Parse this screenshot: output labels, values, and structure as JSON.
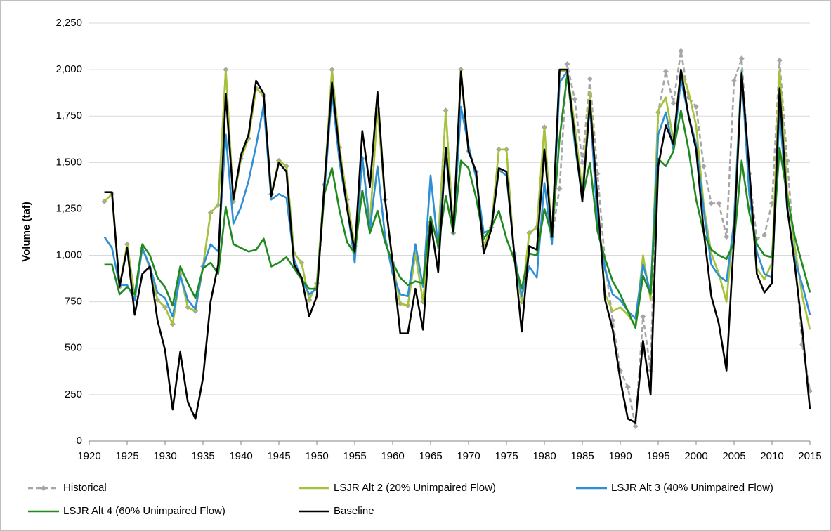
{
  "chart_data": {
    "type": "line",
    "y_label": "Volume (taf)",
    "x": [
      1922,
      1923,
      1924,
      1925,
      1926,
      1927,
      1928,
      1929,
      1930,
      1931,
      1932,
      1933,
      1934,
      1935,
      1936,
      1937,
      1938,
      1939,
      1940,
      1941,
      1942,
      1943,
      1944,
      1945,
      1946,
      1947,
      1948,
      1949,
      1950,
      1951,
      1952,
      1953,
      1954,
      1955,
      1956,
      1957,
      1958,
      1959,
      1960,
      1961,
      1962,
      1963,
      1964,
      1965,
      1966,
      1967,
      1968,
      1969,
      1970,
      1971,
      1972,
      1973,
      1974,
      1975,
      1976,
      1977,
      1978,
      1979,
      1980,
      1981,
      1982,
      1983,
      1984,
      1985,
      1986,
      1987,
      1988,
      1989,
      1990,
      1991,
      1992,
      1993,
      1994,
      1995,
      1996,
      1997,
      1998,
      1999,
      2000,
      2001,
      2002,
      2003,
      2004,
      2005,
      2006,
      2007,
      2008,
      2009,
      2010,
      2011,
      2012,
      2013,
      2014,
      2015
    ],
    "xlim": [
      1920,
      2015
    ],
    "xticks": [
      1920,
      1925,
      1930,
      1935,
      1940,
      1945,
      1950,
      1955,
      1960,
      1965,
      1970,
      1975,
      1980,
      1985,
      1990,
      1995,
      2000,
      2005,
      2010,
      2015
    ],
    "ylim": [
      0,
      2250
    ],
    "yticks": [
      0,
      250,
      500,
      750,
      {
        "value": 1000,
        "label": "1,000"
      },
      {
        "value": 1250,
        "label": "1,250"
      },
      {
        "value": 1500,
        "label": "1,500"
      },
      {
        "value": 1750,
        "label": "1,750"
      },
      {
        "value": 2000,
        "label": "2,000"
      },
      {
        "value": 2250,
        "label": "2,250"
      }
    ],
    "grid": true,
    "series": [
      {
        "name": "Historical",
        "color": "#a6a6a6",
        "dashed": true,
        "marker": "diamond",
        "values": [
          1290,
          1330,
          830,
          1060,
          780,
          1040,
          930,
          760,
          720,
          630,
          900,
          720,
          700,
          940,
          1230,
          1270,
          2000,
          1290,
          1520,
          1630,
          1900,
          1860,
          1330,
          1510,
          1480,
          1010,
          960,
          760,
          850,
          1380,
          2000,
          1580,
          1300,
          1050,
          1520,
          1170,
          1790,
          1300,
          960,
          740,
          730,
          1010,
          750,
          1180,
          1080,
          1780,
          1120,
          2000,
          1560,
          1450,
          1050,
          1150,
          1570,
          1570,
          1010,
          750,
          1120,
          1150,
          1690,
          1100,
          1360,
          2030,
          1840,
          1500,
          1950,
          1440,
          960,
          650,
          380,
          290,
          80,
          670,
          380,
          1770,
          1990,
          1820,
          2100,
          1850,
          1800,
          1480,
          1280,
          1280,
          1100,
          1940,
          2060,
          1440,
          1090,
          1110,
          1280,
          2050,
          1510,
          1000,
          520,
          270
        ]
      },
      {
        "name": "LSJR Alt 2 (20% Unimpaired Flow)",
        "color": "#a4c23a",
        "values": [
          1290,
          1330,
          830,
          1060,
          780,
          1040,
          930,
          760,
          720,
          630,
          900,
          720,
          700,
          940,
          1230,
          1270,
          2000,
          1290,
          1520,
          1630,
          1900,
          1860,
          1330,
          1510,
          1480,
          1010,
          960,
          760,
          850,
          1380,
          2000,
          1580,
          1300,
          1050,
          1520,
          1170,
          1790,
          1300,
          960,
          740,
          730,
          1010,
          750,
          1180,
          1080,
          1780,
          1120,
          2000,
          1560,
          1450,
          1050,
          1150,
          1570,
          1570,
          1010,
          750,
          1120,
          1150,
          1690,
          1100,
          1990,
          1990,
          1700,
          1340,
          1880,
          1270,
          790,
          700,
          720,
          680,
          620,
          1000,
          760,
          1780,
          1850,
          1620,
          2000,
          1880,
          1700,
          1270,
          1010,
          900,
          750,
          1200,
          2000,
          1380,
          930,
          870,
          960,
          2000,
          1350,
          1050,
          780,
          600
        ]
      },
      {
        "name": "LSJR Alt 3 (40% Unimpaired Flow)",
        "color": "#2f8fd5",
        "values": [
          1100,
          1040,
          840,
          840,
          760,
          1040,
          940,
          800,
          770,
          670,
          890,
          760,
          710,
          940,
          1060,
          1020,
          1650,
          1170,
          1260,
          1400,
          1590,
          1810,
          1300,
          1330,
          1310,
          980,
          870,
          790,
          820,
          1340,
          1880,
          1500,
          1260,
          960,
          1530,
          1140,
          1480,
          1100,
          900,
          790,
          780,
          1060,
          830,
          1430,
          1040,
          1550,
          1130,
          1800,
          1590,
          1420,
          1120,
          1140,
          1460,
          1430,
          1020,
          780,
          940,
          880,
          1390,
          1060,
          1930,
          1990,
          1600,
          1310,
          1810,
          1180,
          920,
          790,
          760,
          700,
          660,
          950,
          800,
          1650,
          1770,
          1570,
          1950,
          1750,
          1600,
          1240,
          950,
          890,
          860,
          1180,
          1990,
          1330,
          1020,
          900,
          880,
          1780,
          1250,
          980,
          840,
          680
        ]
      },
      {
        "name": "LSJR Alt 4 (60% Unimpaired Flow)",
        "color": "#1f8a1f",
        "values": [
          950,
          950,
          790,
          830,
          790,
          1060,
          1000,
          880,
          830,
          730,
          940,
          850,
          770,
          930,
          960,
          900,
          1260,
          1060,
          1040,
          1020,
          1030,
          1090,
          940,
          960,
          990,
          930,
          870,
          820,
          820,
          1330,
          1470,
          1240,
          1070,
          1010,
          1350,
          1120,
          1240,
          1070,
          960,
          880,
          840,
          860,
          850,
          1210,
          1050,
          1320,
          1120,
          1510,
          1470,
          1310,
          1090,
          1150,
          1240,
          1090,
          980,
          820,
          1010,
          1000,
          1250,
          1100,
          1630,
          1970,
          1630,
          1310,
          1500,
          1130,
          980,
          860,
          790,
          700,
          610,
          890,
          790,
          1520,
          1480,
          1560,
          1780,
          1570,
          1300,
          1120,
          1030,
          1000,
          980,
          1070,
          1510,
          1230,
          1060,
          1000,
          990,
          1580,
          1320,
          1100,
          950,
          800
        ]
      },
      {
        "name": "Baseline",
        "color": "#000000",
        "values": [
          1340,
          1340,
          830,
          1040,
          680,
          900,
          940,
          650,
          490,
          170,
          480,
          210,
          120,
          340,
          750,
          950,
          1870,
          1300,
          1540,
          1650,
          1940,
          1870,
          1320,
          1500,
          1450,
          950,
          880,
          670,
          780,
          1380,
          1930,
          1550,
          1250,
          1020,
          1670,
          1370,
          1880,
          1300,
          960,
          580,
          580,
          820,
          600,
          1180,
          910,
          1580,
          1130,
          1990,
          1560,
          1450,
          1010,
          1140,
          1470,
          1450,
          1020,
          590,
          1050,
          1030,
          1570,
          1100,
          2000,
          2000,
          1640,
          1290,
          1830,
          1300,
          760,
          600,
          330,
          120,
          100,
          540,
          250,
          1480,
          1700,
          1600,
          2000,
          1750,
          1570,
          1130,
          780,
          630,
          380,
          1100,
          1980,
          1470,
          900,
          800,
          850,
          1900,
          1260,
          950,
          600,
          170
        ]
      }
    ]
  }
}
